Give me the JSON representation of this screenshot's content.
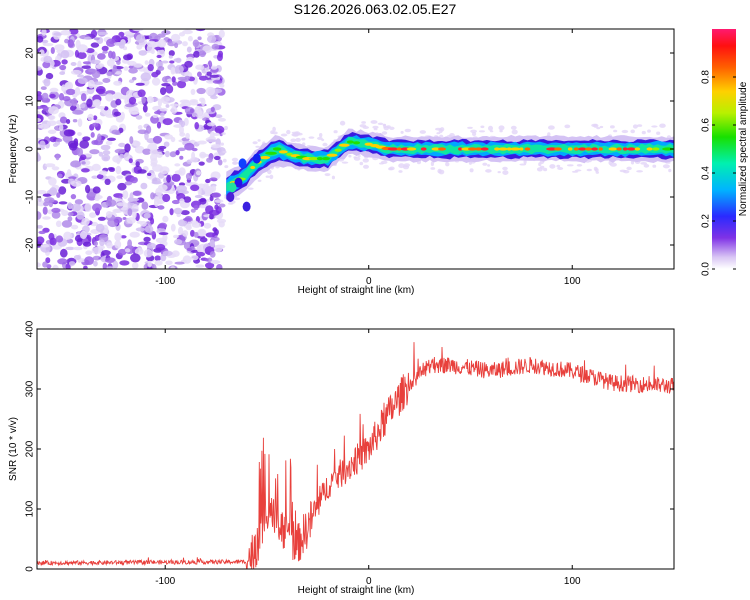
{
  "title": "S126.2026.063.02.05.E27",
  "chart_data": [
    {
      "type": "heatmap",
      "xlabel": "Height of straight line (km)",
      "ylabel": "Frequency (Hz)",
      "xlim": [
        -163,
        150
      ],
      "ylim": [
        -25,
        25
      ],
      "xticks": [
        -100,
        0,
        100
      ],
      "yticks": [
        -20,
        -10,
        0,
        10,
        20
      ],
      "colorbar": {
        "label": "Normalized spectral amplitude",
        "range": [
          0,
          1
        ],
        "ticks": [
          "0.0",
          "0.2",
          "0.4",
          "0.6",
          "0.8"
        ],
        "tick_values": [
          0.0,
          0.2,
          0.4,
          0.6,
          0.8
        ]
      },
      "features": {
        "noise_region_km": [
          -163,
          -75
        ],
        "tone_centerline": [
          [
            -70,
            -8
          ],
          [
            -62,
            -6
          ],
          [
            -55,
            -3
          ],
          [
            -45,
            0
          ],
          [
            -40,
            -1
          ],
          [
            -30,
            -2
          ],
          [
            -20,
            -2
          ],
          [
            -10,
            1.5
          ],
          [
            0,
            1
          ],
          [
            10,
            0
          ],
          [
            50,
            0
          ],
          [
            100,
            0
          ],
          [
            150,
            0
          ]
        ]
      }
    },
    {
      "type": "line",
      "xlabel": "Height of straight line (km)",
      "ylabel": "SNR (10 * v/v)",
      "xlim": [
        -163,
        150
      ],
      "ylim": [
        0,
        400
      ],
      "xticks": [
        -100,
        0,
        100
      ],
      "yticks": [
        0,
        100,
        200,
        300,
        400
      ],
      "series": [
        {
          "name": "SNR",
          "color": "#e8403c",
          "envelope_x": [
            -163,
            -60,
            -55,
            -50,
            -45,
            -40,
            -35,
            -30,
            -20,
            -10,
            0,
            10,
            20,
            30,
            40,
            60,
            80,
            100,
            120,
            150
          ],
          "envelope_y": [
            10,
            12,
            40,
            90,
            80,
            60,
            40,
            70,
            140,
            170,
            200,
            260,
            310,
            340,
            340,
            330,
            340,
            330,
            310,
            305
          ]
        }
      ]
    }
  ],
  "colors": {
    "heat_low": "#c2a6ee",
    "heat_mid": "#00b0ff",
    "heat_high": "#ff2030",
    "line": "#e8403c"
  }
}
